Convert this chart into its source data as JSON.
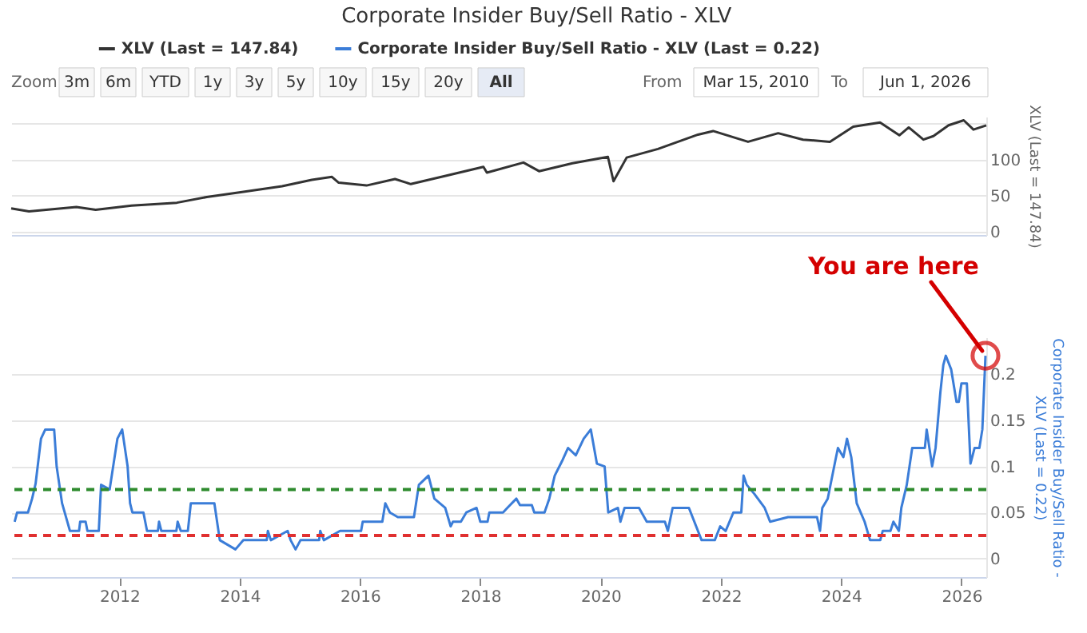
{
  "chart_data": [
    {
      "type": "line",
      "title": "Corporate Insider Buy/Sell Ratio - XLV",
      "ylabel": "XLV (Last = 147.84)",
      "legend": "top",
      "grid": "y",
      "marker": "none",
      "line_style": "solid",
      "tick_labels": "y",
      "xlim": [
        "2010-03-15",
        "2026-06-01"
      ],
      "ylim": [
        -5,
        160
      ],
      "yticks": [
        0,
        50,
        100,
        {
          "value": 150,
          "label": null
        }
      ],
      "annotations": [
        "Zoom",
        "3m",
        "6m",
        "YTD",
        "1y",
        "3y",
        "5y",
        "10y",
        "15y",
        "20y",
        "All",
        "From",
        "Mar 15, 2010",
        "To",
        "Jun 1, 2026"
      ],
      "series": [
        {
          "name": "XLV (Last = 147.84)",
          "color": "#333333",
          "type": "line",
          "x": [
            "2010-03-15",
            "2010-07-01",
            "2011-04-15",
            "2011-08-10",
            "2012-03-15",
            "2012-12-15",
            "2013-06-15",
            "2014-01-15",
            "2014-09-15",
            "2015-03-15",
            "2015-07-15",
            "2015-08-25",
            "2016-02-10",
            "2016-08-01",
            "2016-11-05",
            "2017-06-15",
            "2018-01-20",
            "2018-02-10",
            "2018-09-20",
            "2018-12-24",
            "2019-07-15",
            "2020-02-15",
            "2020-03-20",
            "2020-06-08",
            "2020-12-15",
            "2021-08-15",
            "2021-11-15",
            "2022-06-15",
            "2022-12-15",
            "2023-05-15",
            "2023-10-25",
            "2024-03-15",
            "2024-08-25",
            "2024-12-20",
            "2025-02-15",
            "2025-05-15",
            "2025-07-15",
            "2025-10-15",
            "2026-01-15",
            "2026-03-15",
            "2026-06-01"
          ],
          "values": [
            32,
            28,
            34,
            30,
            36,
            40,
            48,
            55,
            63,
            72,
            76,
            68,
            64,
            73,
            66,
            78,
            90,
            82,
            96,
            84,
            95,
            104,
            70,
            103,
            115,
            135,
            140,
            125,
            137,
            128,
            125,
            146,
            152,
            134,
            145,
            128,
            133,
            148,
            155,
            142,
            147.84
          ]
        }
      ]
    },
    {
      "type": "line",
      "ylabel": "Corporate Insider Buy/Sell Ratio - XLV (Last = 0.22)",
      "grid": "y",
      "marker": "none",
      "line_style": "solid",
      "xlim": [
        "2010-03-15",
        "2026-06-01"
      ],
      "xticks": [
        "2012",
        "2014",
        "2016",
        "2018",
        "2020",
        "2022",
        "2024",
        "2026"
      ],
      "ylim": [
        -0.02,
        0.24
      ],
      "yticks": [
        0,
        0.05,
        0.1,
        0.15,
        0.2
      ],
      "ref_lines": [
        {
          "axis": "y",
          "value": 0.075,
          "color": "#2e8b2e",
          "line_style": "dashed"
        },
        {
          "axis": "y",
          "value": 0.025,
          "color": "#e03030",
          "line_style": "dashed"
        }
      ],
      "annotations": [
        {
          "text": "You are here",
          "x": "2026-05-27",
          "y": 0.22
        }
      ],
      "series": [
        {
          "name": "Corporate Insider Buy/Sell Ratio - XLV (Last = 0.22)",
          "color": "#3b7dd8",
          "type": "line",
          "x": [
            "2010-04-05",
            "2010-04-20",
            "2010-06-25",
            "2010-07-20",
            "2010-08-10",
            "2010-09-12",
            "2010-10-08",
            "2010-12-01",
            "2010-12-16",
            "2011-01-18",
            "2011-03-07",
            "2011-05-01",
            "2011-05-08",
            "2011-06-10",
            "2011-06-21",
            "2011-08-29",
            "2011-09-12",
            "2011-11-03",
            "2011-12-20",
            "2012-01-18",
            "2012-02-20",
            "2012-03-06",
            "2012-03-20",
            "2012-05-26",
            "2012-06-17",
            "2012-08-22",
            "2012-08-29",
            "2012-09-12",
            "2012-12-12",
            "2012-12-20",
            "2013-01-08",
            "2013-02-20",
            "2013-03-10",
            "2013-07-31",
            "2013-09-02",
            "2013-12-06",
            "2014-01-23",
            "2014-06-14",
            "2014-06-21",
            "2014-07-09",
            "2014-10-19",
            "2014-11-06",
            "2014-12-06",
            "2015-01-05",
            "2015-04-28",
            "2015-05-05",
            "2015-05-27",
            "2015-09-02",
            "2016-01-08",
            "2016-01-18",
            "2016-05-16",
            "2016-06-03",
            "2016-07-01",
            "2016-08-18",
            "2016-11-24",
            "2016-12-24",
            "2017-02-20",
            "2017-03-28",
            "2017-06-02",
            "2017-07-05",
            "2017-07-19",
            "2017-09-05",
            "2017-10-08",
            "2017-12-09",
            "2018-01-01",
            "2018-02-14",
            "2018-02-25",
            "2018-05-19",
            "2018-06-14",
            "2018-08-08",
            "2018-08-30",
            "2018-11-10",
            "2018-11-25",
            "2019-01-26",
            "2019-02-24",
            "2019-03-29",
            "2019-05-16",
            "2019-06-18",
            "2019-08-04",
            "2019-09-21",
            "2019-11-03",
            "2019-12-10",
            "2020-01-26",
            "2020-02-17",
            "2020-04-16",
            "2020-05-01",
            "2020-05-26",
            "2020-08-22",
            "2020-10-08",
            "2021-01-26",
            "2021-02-13",
            "2021-03-14",
            "2021-06-21",
            "2021-09-06",
            "2021-11-25",
            "2021-12-28",
            "2022-01-30",
            "2022-03-18",
            "2022-05-05",
            "2022-05-19",
            "2022-06-07",
            "2022-07-24",
            "2022-09-24",
            "2022-10-27",
            "2023-02-13",
            "2023-08-08",
            "2023-08-26",
            "2023-09-09",
            "2023-10-12",
            "2023-11-28",
            "2023-12-13",
            "2024-01-15",
            "2024-02-06",
            "2024-03-03",
            "2024-04-05",
            "2024-05-23",
            "2024-06-25",
            "2024-08-26",
            "2024-09-10",
            "2024-10-27",
            "2024-11-14",
            "2024-12-17",
            "2025-01-01",
            "2025-02-03",
            "2025-03-08",
            "2025-05-24",
            "2025-06-04",
            "2025-07-07",
            "2025-07-28",
            "2025-08-26",
            "2025-09-13",
            "2025-09-28",
            "2025-10-31",
            "2025-12-02",
            "2025-12-16",
            "2026-01-01",
            "2026-02-03",
            "2026-02-25",
            "2026-03-22",
            "2026-04-20",
            "2026-05-08",
            "2026-05-27"
          ],
          "values": [
            0.04,
            0.05,
            0.05,
            0.065,
            0.081,
            0.13,
            0.14,
            0.14,
            0.1,
            0.06,
            0.03,
            0.03,
            0.04,
            0.04,
            0.03,
            0.03,
            0.08,
            0.075,
            0.13,
            0.14,
            0.1,
            0.06,
            0.05,
            0.05,
            0.03,
            0.03,
            0.04,
            0.03,
            0.03,
            0.04,
            0.03,
            0.03,
            0.06,
            0.06,
            0.02,
            0.01,
            0.02,
            0.02,
            0.03,
            0.02,
            0.03,
            0.02,
            0.01,
            0.02,
            0.02,
            0.03,
            0.02,
            0.03,
            0.03,
            0.04,
            0.04,
            0.06,
            0.05,
            0.045,
            0.045,
            0.08,
            0.09,
            0.065,
            0.055,
            0.035,
            0.04,
            0.04,
            0.05,
            0.055,
            0.04,
            0.04,
            0.05,
            0.05,
            0.055,
            0.065,
            0.058,
            0.058,
            0.05,
            0.05,
            0.065,
            0.09,
            0.107,
            0.12,
            0.112,
            0.13,
            0.14,
            0.103,
            0.1,
            0.05,
            0.055,
            0.04,
            0.055,
            0.055,
            0.04,
            0.04,
            0.03,
            0.055,
            0.055,
            0.02,
            0.02,
            0.035,
            0.03,
            0.05,
            0.05,
            0.09,
            0.08,
            0.07,
            0.055,
            0.04,
            0.045,
            0.045,
            0.03,
            0.055,
            0.065,
            0.107,
            0.12,
            0.11,
            0.13,
            0.11,
            0.06,
            0.04,
            0.02,
            0.02,
            0.03,
            0.03,
            0.04,
            0.03,
            0.055,
            0.08,
            0.12,
            0.12,
            0.14,
            0.1,
            0.12,
            0.18,
            0.21,
            0.22,
            0.205,
            0.17,
            0.17,
            0.19,
            0.19,
            0.103,
            0.12,
            0.12,
            0.14,
            0.22
          ]
        }
      ]
    }
  ]
}
